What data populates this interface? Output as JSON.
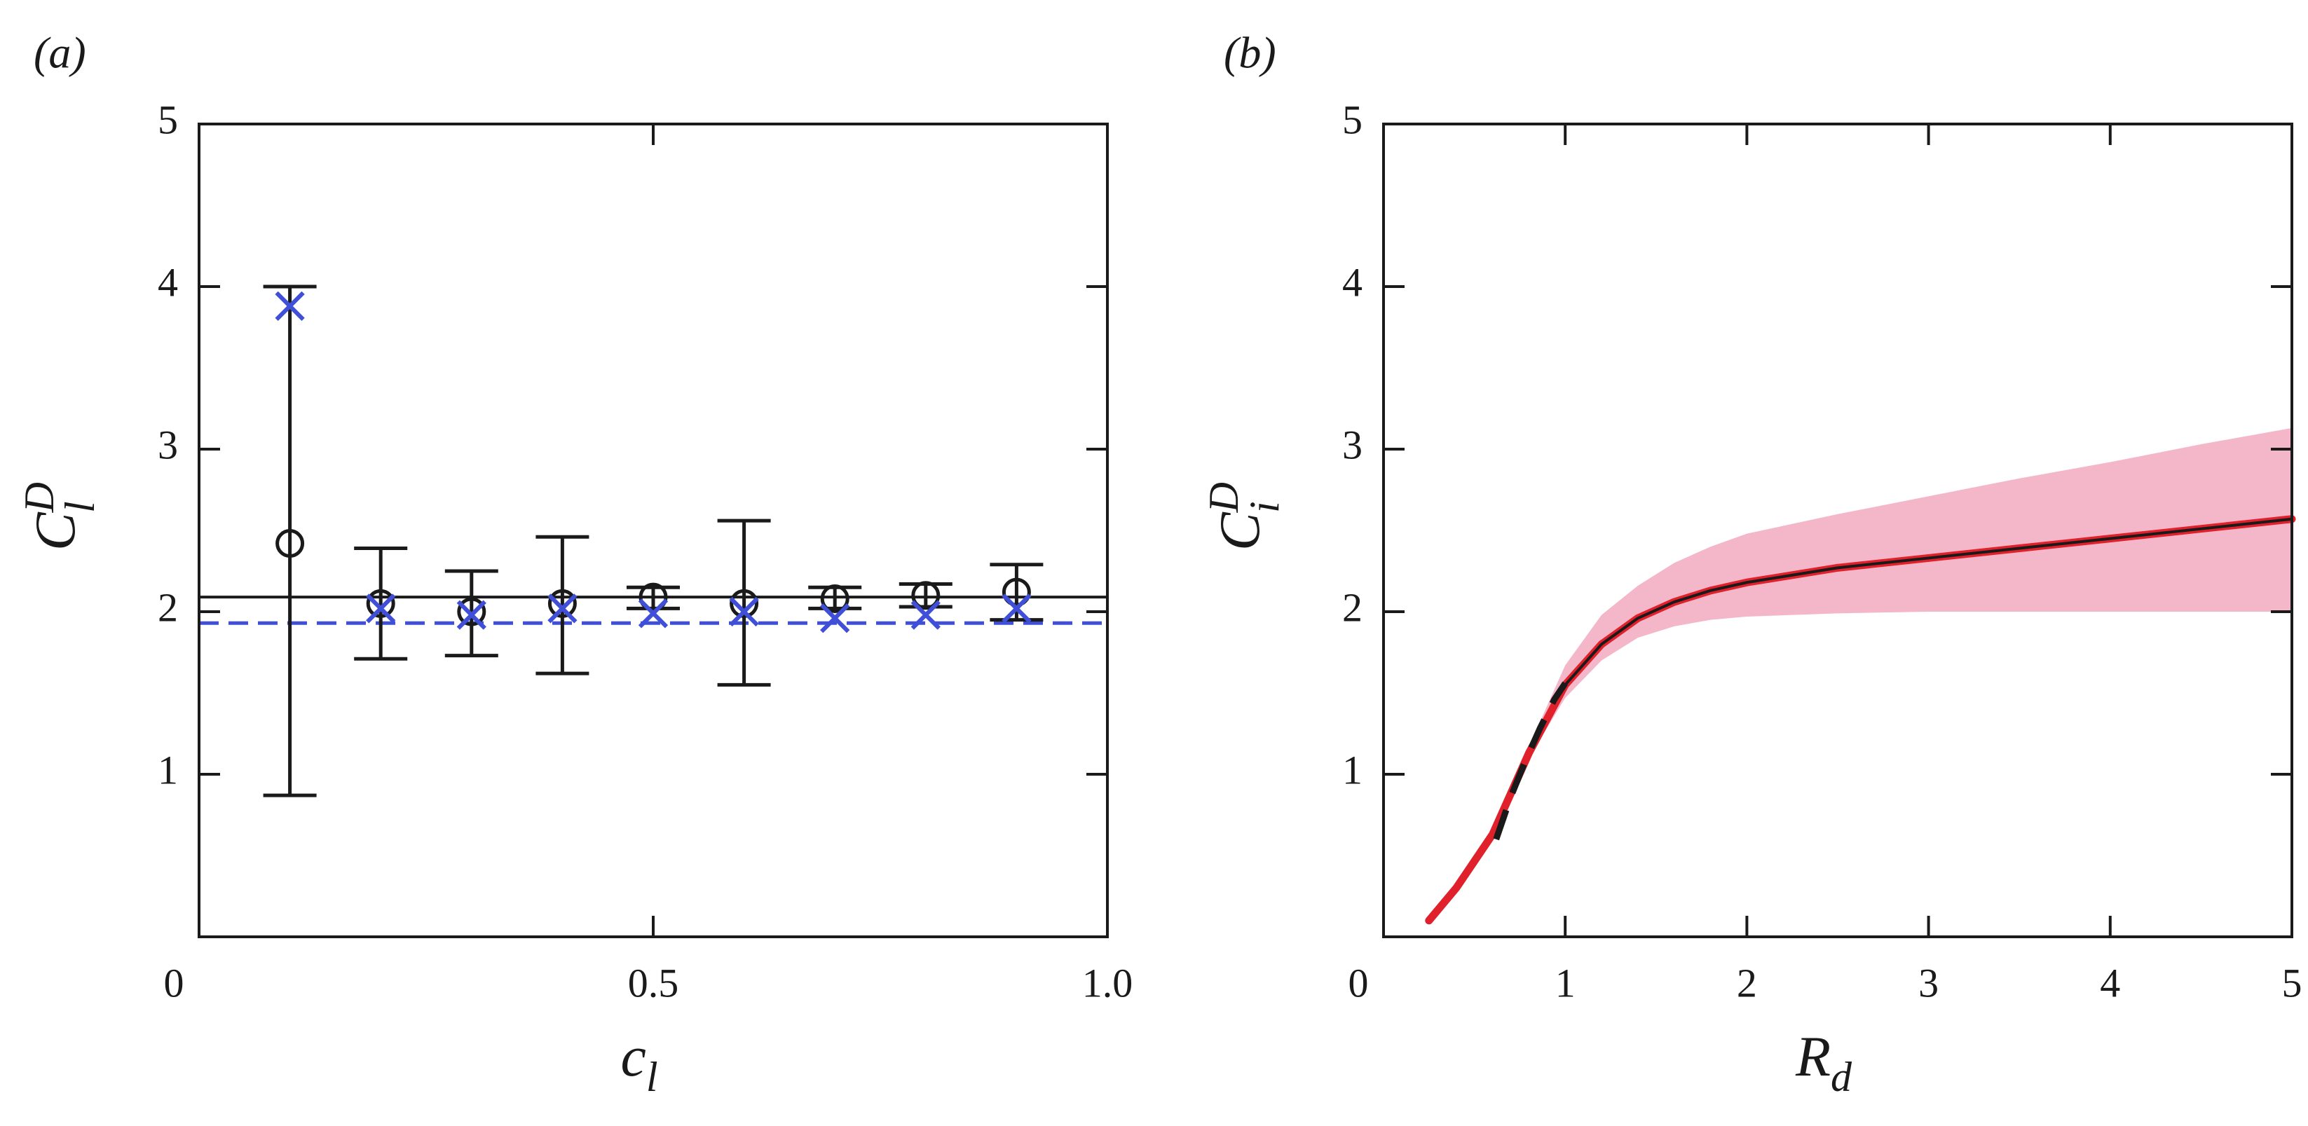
{
  "chart_data": [
    {
      "type": "scatter",
      "panel_label": "(a)",
      "xlabel": {
        "main": "c",
        "sub": "l"
      },
      "ylabel": {
        "main": "C",
        "sup": "D",
        "sub": "l"
      },
      "xlim": [
        0,
        1.0
      ],
      "ylim": [
        0,
        5
      ],
      "xticks": [
        0,
        0.5,
        1.0
      ],
      "xtick_labels": [
        "0",
        "0.5",
        "1.0"
      ],
      "yticks": [
        1,
        2,
        3,
        4,
        5
      ],
      "ytick_labels": [
        "1",
        "2",
        "3",
        "4",
        "5"
      ],
      "grid": false,
      "series": [
        {
          "marker": "circle",
          "color": "#1a1a1a",
          "x": [
            0.1,
            0.2,
            0.3,
            0.4,
            0.5,
            0.6,
            0.7,
            0.8,
            0.9
          ],
          "y": [
            2.42,
            2.05,
            2.0,
            2.05,
            2.09,
            2.05,
            2.08,
            2.1,
            2.12
          ],
          "err_low": [
            0.87,
            1.71,
            1.73,
            1.62,
            2.02,
            1.55,
            2.02,
            2.03,
            1.95
          ],
          "err_high": [
            4.0,
            2.39,
            2.25,
            2.46,
            2.15,
            2.56,
            2.15,
            2.17,
            2.29
          ]
        },
        {
          "marker": "x",
          "color": "#3f4fd8",
          "x": [
            0.1,
            0.2,
            0.3,
            0.4,
            0.5,
            0.6,
            0.7,
            0.8,
            0.9
          ],
          "y": [
            3.88,
            2.02,
            1.98,
            2.02,
            1.99,
            2.0,
            1.96,
            1.98,
            2.02
          ]
        }
      ],
      "hlines": [
        {
          "y": 2.09,
          "style": "solid",
          "color": "#1a1a1a"
        },
        {
          "y": 1.93,
          "style": "dashed",
          "color": "#3f4fd8"
        }
      ]
    },
    {
      "type": "line",
      "panel_label": "(b)",
      "xlabel": {
        "main": "R",
        "sub": "d"
      },
      "ylabel": {
        "main": "C",
        "sup": "D",
        "sub": "i"
      },
      "xlim": [
        0,
        5
      ],
      "ylim": [
        0,
        5
      ],
      "xticks": [
        0,
        1,
        2,
        3,
        4,
        5
      ],
      "xtick_labels": [
        "0",
        "1",
        "2",
        "3",
        "4",
        "5"
      ],
      "yticks": [
        1,
        2,
        3,
        4,
        5
      ],
      "ytick_labels": [
        "1",
        "2",
        "3",
        "4",
        "5"
      ],
      "grid": false,
      "series": [
        {
          "style": "solid",
          "color": "#e0202a",
          "x": [
            0.25,
            0.4,
            0.6,
            0.8,
            1.0,
            1.2,
            1.4,
            1.6,
            1.8,
            2.0,
            2.5,
            3.0,
            3.5,
            4.0,
            4.5,
            5.0
          ],
          "y": [
            0.1,
            0.3,
            0.63,
            1.13,
            1.55,
            1.8,
            1.96,
            2.06,
            2.13,
            2.18,
            2.27,
            2.33,
            2.39,
            2.45,
            2.51,
            2.57
          ]
        },
        {
          "style": "solid",
          "color": "#1a1a1a",
          "x": [
            1.0,
            1.2,
            1.4,
            1.6,
            1.8,
            2.0,
            2.5,
            3.0,
            3.5,
            4.0,
            4.5,
            5.0
          ],
          "y": [
            1.55,
            1.8,
            1.96,
            2.06,
            2.13,
            2.18,
            2.27,
            2.33,
            2.39,
            2.45,
            2.51,
            2.57
          ]
        },
        {
          "style": "dashed",
          "color": "#1a1a1a",
          "x": [
            0.62,
            0.7,
            0.78,
            0.86,
            0.94,
            1.0
          ],
          "y": [
            0.6,
            0.86,
            1.08,
            1.28,
            1.46,
            1.56
          ]
        }
      ],
      "band": {
        "color": "#f4b7ca",
        "x": [
          0.8,
          1.0,
          1.2,
          1.4,
          1.6,
          1.8,
          2.0,
          2.5,
          3.0,
          3.5,
          4.0,
          4.5,
          5.0
        ],
        "lower": [
          1.1,
          1.47,
          1.7,
          1.84,
          1.91,
          1.95,
          1.97,
          1.99,
          2.0,
          2.0,
          2.0,
          2.0,
          2.0
        ],
        "upper": [
          1.17,
          1.67,
          1.98,
          2.16,
          2.3,
          2.4,
          2.48,
          2.6,
          2.71,
          2.82,
          2.92,
          3.03,
          3.13
        ]
      }
    }
  ]
}
